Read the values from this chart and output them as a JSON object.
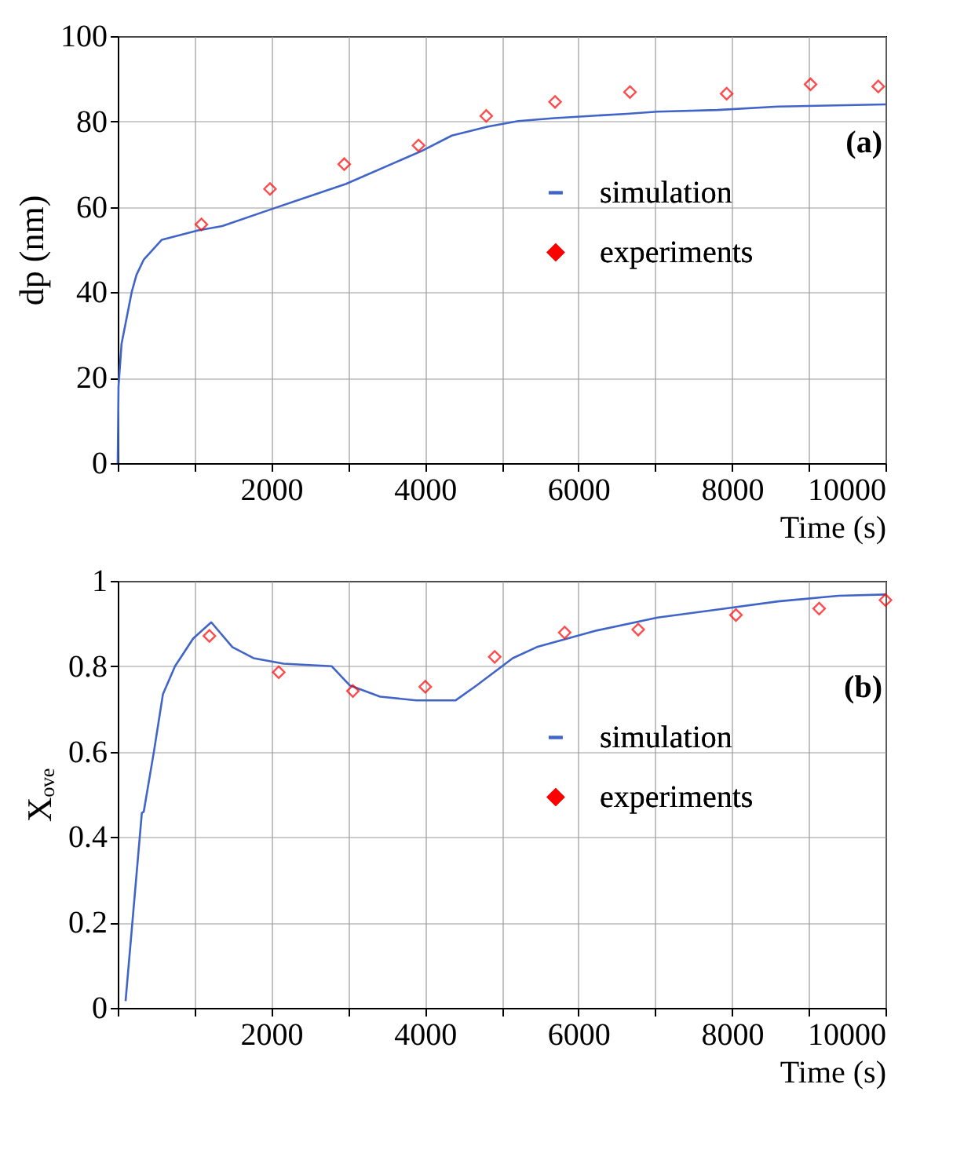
{
  "chart_data": [
    {
      "type": "line",
      "ylabel": "dp (nm)",
      "xlabel": "Time (s)",
      "xlim": [
        0,
        10000
      ],
      "ylim": [
        0,
        100
      ],
      "xticks": [
        {
          "value": 0,
          "label": null
        },
        {
          "value": 1000,
          "label": null
        },
        2000,
        {
          "value": 3000,
          "label": null
        },
        4000,
        {
          "value": 5000,
          "label": null
        },
        6000,
        {
          "value": 7000,
          "label": null
        },
        8000,
        {
          "value": 9000,
          "label": null
        },
        10000
      ],
      "yticks": [
        0,
        20,
        40,
        60,
        80,
        100
      ],
      "grid": true,
      "legend": "right",
      "annotations": [
        "(a)"
      ],
      "series": [
        {
          "name": "simulation",
          "color": "#4064c8",
          "x": [
            0,
            10,
            50,
            181,
            244,
            340,
            574,
            1046,
            1361,
            1990,
            2974,
            3958,
            4351,
            4823,
            5216,
            5688,
            6633,
            7026,
            7813,
            8600,
            10000
          ],
          "values": [
            0,
            18,
            28,
            40,
            44.1,
            47.7,
            52.3,
            54.5,
            55.5,
            59.4,
            65.4,
            73.1,
            76.7,
            78.8,
            80.1,
            80.8,
            81.8,
            82.3,
            82.7,
            83.5,
            84.0
          ]
        },
        {
          "name": "experiments",
          "type": "scatter",
          "marker": "diamond",
          "color": "#ff0000",
          "x": [
            1090,
            1983,
            2950,
            3918,
            4800,
            5696,
            6672,
            7931,
            9024,
            9906
          ],
          "values": [
            55.9,
            64.2,
            70.0,
            74.4,
            81.3,
            84.6,
            86.9,
            86.5,
            88.7,
            88.2
          ]
        }
      ]
    },
    {
      "type": "line",
      "ylabel": "Xₒᵥₑ",
      "xlabel": "Time (s)",
      "xlim": [
        0,
        10000
      ],
      "ylim": [
        0,
        1
      ],
      "xticks": [
        {
          "value": 0,
          "label": null
        },
        {
          "value": 1000,
          "label": null
        },
        2000,
        {
          "value": 3000,
          "label": null
        },
        4000,
        {
          "value": 5000,
          "label": null
        },
        6000,
        {
          "value": 7000,
          "label": null
        },
        8000,
        {
          "value": 9000,
          "label": null
        },
        10000
      ],
      "yticks": [
        0,
        0.2,
        0.4,
        0.6,
        0.8,
        1
      ],
      "grid": true,
      "legend": "right",
      "annotations": [
        "(b)"
      ],
      "series": [
        {
          "name": "simulation",
          "color": "#4064c8",
          "x": [
            102,
            314,
            338,
            471,
            589,
            746,
            982,
            1218,
            1493,
            1768,
            2160,
            2788,
            3024,
            3417,
            3888,
            4399,
            4674,
            5145,
            5459,
            6245,
            7031,
            7816,
            8602,
            9387,
            10000
          ],
          "values": [
            0.016,
            0.457,
            0.459,
            0.6,
            0.735,
            0.8,
            0.865,
            0.903,
            0.845,
            0.819,
            0.806,
            0.8,
            0.755,
            0.729,
            0.72,
            0.72,
            0.755,
            0.819,
            0.845,
            0.884,
            0.914,
            0.933,
            0.952,
            0.965,
            0.968
          ]
        },
        {
          "name": "experiments",
          "type": "scatter",
          "marker": "diamond",
          "color": "#ff0000",
          "x": [
            1194,
            2097,
            3063,
            4006,
            4910,
            5821,
            6779,
            8052,
            9136,
            10000
          ],
          "values": [
            0.871,
            0.786,
            0.742,
            0.752,
            0.822,
            0.879,
            0.886,
            0.92,
            0.935,
            0.955
          ]
        }
      ]
    }
  ]
}
